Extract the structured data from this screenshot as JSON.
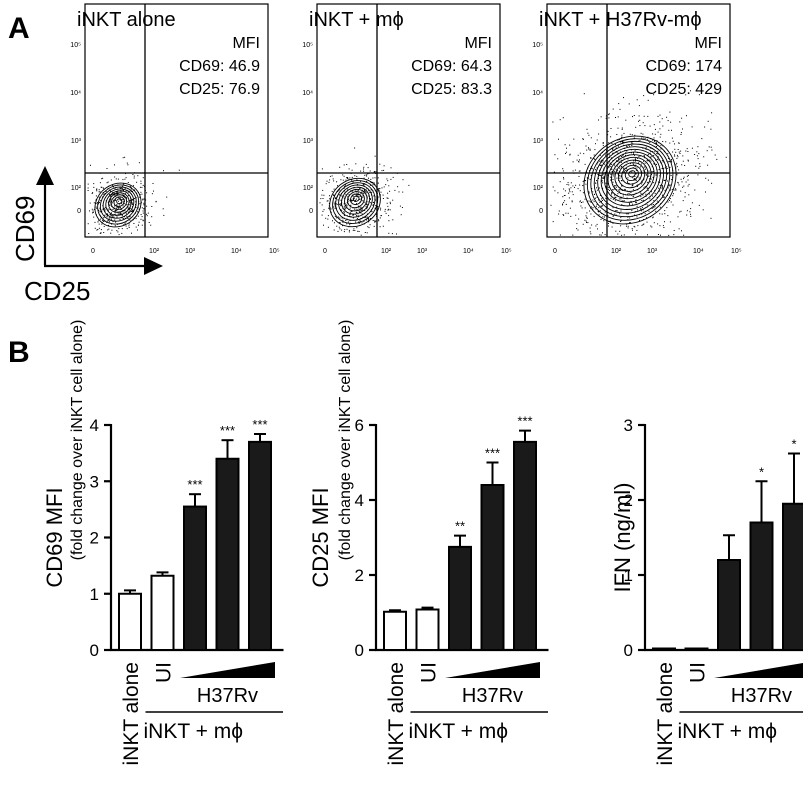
{
  "panel_a": {
    "label": "A",
    "axis_tick_labels": {
      "x": [
        "0",
        "10²",
        "10³",
        "10⁴",
        "10⁵"
      ],
      "y": [
        "0",
        "10²",
        "10³",
        "10⁴",
        "10⁵"
      ]
    },
    "corner_axes": {
      "y_label": "CD69",
      "x_label": "CD25"
    },
    "plots": [
      {
        "title": "iNKT alone",
        "mfi_header": "MFI",
        "cd69": "CD69: 46.9",
        "cd25": "CD25: 76.9",
        "spread": 1.0
      },
      {
        "title": "iNKT + mϕ",
        "mfi_header": "MFI",
        "cd69": "CD69: 64.3",
        "cd25": "CD25: 83.3",
        "spread": 1.1
      },
      {
        "title": "iNKT + H37Rv-mϕ",
        "mfi_header": "MFI",
        "cd69": "CD69: 174",
        "cd25": "CD25: 429",
        "spread": 2.0
      }
    ]
  },
  "panel_b": {
    "label": "B",
    "group_labels": {
      "alone": "iNKT alone",
      "ui": "UI",
      "h37rv": "H37Rv",
      "coculture": "iNKT + mϕ"
    }
  },
  "chart_data": [
    {
      "type": "bar",
      "ylabel": "CD69 MFI",
      "ylabel_sub": "(fold change over iNKT cell alone)",
      "ylim": [
        0,
        4
      ],
      "yticks": [
        0,
        1,
        2,
        3,
        4
      ],
      "categories": [
        "iNKT alone",
        "UI",
        "H37Rv low",
        "H37Rv mid",
        "H37Rv high"
      ],
      "values": [
        1.0,
        1.32,
        2.55,
        3.4,
        3.7
      ],
      "errors": [
        0.06,
        0.06,
        0.22,
        0.33,
        0.14
      ],
      "filled": [
        false,
        false,
        true,
        true,
        true
      ],
      "significance": [
        "",
        "",
        "***",
        "***",
        "***"
      ]
    },
    {
      "type": "bar",
      "ylabel": "CD25 MFI",
      "ylabel_sub": "(fold change over iNKT cell alone)",
      "ylim": [
        0,
        6
      ],
      "yticks": [
        0,
        2,
        4,
        6
      ],
      "categories": [
        "iNKT alone",
        "UI",
        "H37Rv low",
        "H37Rv mid",
        "H37Rv high"
      ],
      "values": [
        1.02,
        1.08,
        2.75,
        4.4,
        5.55
      ],
      "errors": [
        0.04,
        0.05,
        0.3,
        0.6,
        0.3
      ],
      "filled": [
        false,
        false,
        true,
        true,
        true
      ],
      "significance": [
        "",
        "",
        "**",
        "***",
        "***"
      ]
    },
    {
      "type": "bar",
      "ylabel": "IFN (ng/ml)",
      "ylabel_sub": "",
      "ylim": [
        0,
        3
      ],
      "yticks": [
        0,
        1,
        2,
        3
      ],
      "categories": [
        "iNKT alone",
        "UI",
        "H37Rv low",
        "H37Rv mid",
        "H37Rv high"
      ],
      "values": [
        0.02,
        0.02,
        1.2,
        1.7,
        1.95
      ],
      "errors": [
        0.0,
        0.0,
        0.33,
        0.55,
        0.67
      ],
      "filled": [
        false,
        false,
        true,
        true,
        true
      ],
      "significance": [
        "",
        "",
        "",
        "*",
        "*"
      ]
    }
  ]
}
